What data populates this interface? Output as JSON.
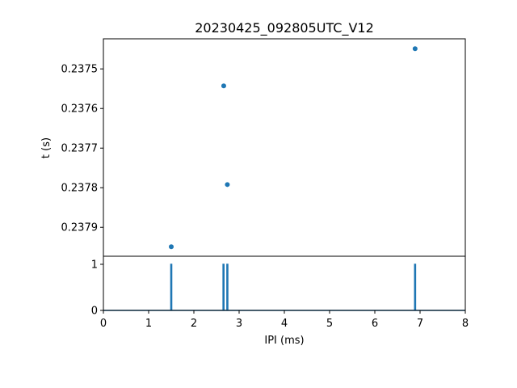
{
  "chart_data": [
    {
      "type": "scatter",
      "title": "20230425_092805UTC_V12",
      "xlabel": "",
      "ylabel": "t (s)",
      "xlim": [
        0,
        8
      ],
      "ylim": [
        0.237973,
        0.237424
      ],
      "y_inverted": true,
      "yticks": [
        0.2375,
        0.2376,
        0.2377,
        0.2378,
        0.2379
      ],
      "ytick_labels": [
        "0.2375",
        "0.2376",
        "0.2377",
        "0.2378",
        "0.2379"
      ],
      "x": [
        6.89,
        2.66,
        2.74,
        1.5
      ],
      "y": [
        0.237449,
        0.237543,
        0.237792,
        0.237949
      ],
      "color": "#1f77b4",
      "grid": false
    },
    {
      "type": "line",
      "xlabel": "IPI (ms)",
      "ylabel": "",
      "xlim": [
        0,
        8
      ],
      "ylim": [
        0,
        1.175
      ],
      "xticks": [
        0,
        1,
        2,
        3,
        4,
        5,
        6,
        7,
        8
      ],
      "xtick_labels": [
        "0",
        "1",
        "2",
        "3",
        "4",
        "5",
        "6",
        "7",
        "8"
      ],
      "yticks": [
        0,
        1
      ],
      "ytick_labels": [
        "0",
        "1"
      ],
      "spikes_x": [
        1.5,
        2.655,
        2.74,
        6.89
      ],
      "baseline": 0,
      "spike_height": 1,
      "color": "#1f77b4",
      "grid": false
    }
  ]
}
